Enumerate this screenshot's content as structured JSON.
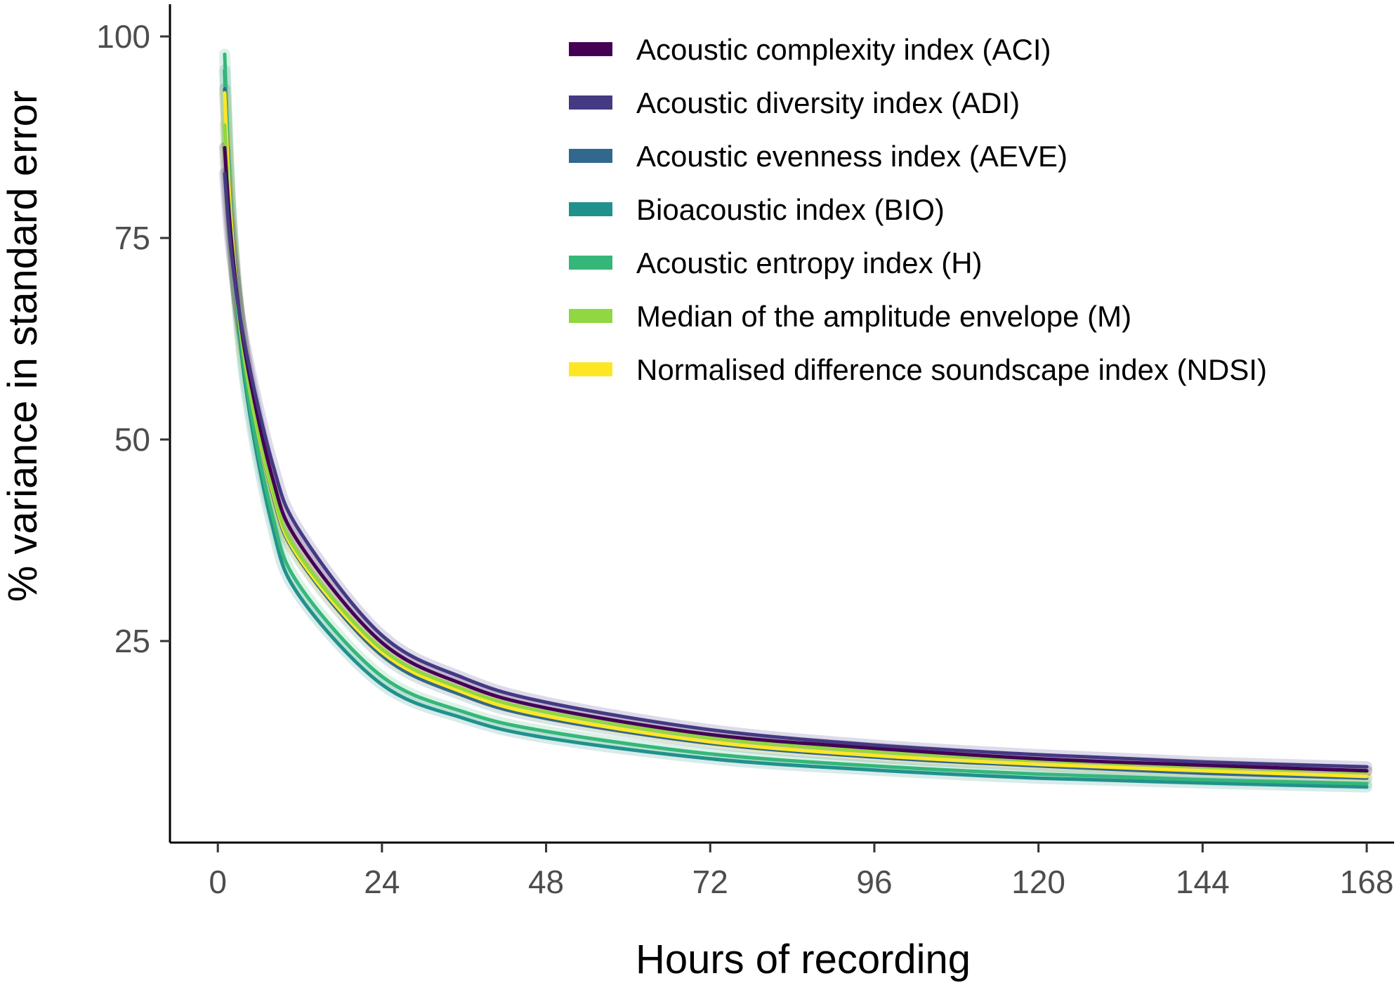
{
  "chart_data": {
    "type": "line",
    "xlabel": "Hours of recording",
    "ylabel": "% variance in standard error",
    "xlim": [
      -7,
      172
    ],
    "ylim": [
      0,
      104
    ],
    "x_ticks": [
      0,
      24,
      48,
      72,
      96,
      120,
      144,
      168
    ],
    "y_ticks": [
      25,
      50,
      75,
      100
    ],
    "grid": false,
    "legend_position": "top-right",
    "series": [
      {
        "name": "Acoustic complexity index (ACI)",
        "color": "#440154",
        "x": [
          1,
          2,
          4,
          8,
          12,
          24,
          36,
          48,
          72,
          96,
          120,
          144,
          168
        ],
        "y": [
          86.2,
          74.5,
          60.8,
          45.2,
          37.0,
          24.8,
          19.6,
          16.7,
          13.4,
          11.7,
          10.4,
          9.6,
          8.9
        ]
      },
      {
        "name": "Acoustic diversity index (ADI)",
        "color": "#443a83",
        "x": [
          1,
          2,
          4,
          8,
          12,
          24,
          36,
          48,
          72,
          96,
          120,
          144,
          168
        ],
        "y": [
          83.0,
          73.0,
          61.6,
          47.0,
          38.6,
          25.7,
          20.4,
          17.4,
          14.0,
          12.1,
          10.9,
          10.0,
          9.4
        ]
      },
      {
        "name": "Acoustic evenness index (AEVE)",
        "color": "#31688e",
        "x": [
          1,
          2,
          4,
          8,
          12,
          24,
          36,
          48,
          72,
          96,
          120,
          144,
          168
        ],
        "y": [
          93.5,
          77.0,
          60.0,
          43.2,
          35.0,
          23.2,
          18.2,
          15.4,
          12.3,
          10.6,
          9.5,
          8.6,
          8.0
        ]
      },
      {
        "name": "Bioacoustic index (BIO)",
        "color": "#21918c",
        "x": [
          1,
          2,
          4,
          8,
          12,
          24,
          36,
          48,
          72,
          96,
          120,
          144,
          168
        ],
        "y": [
          95.8,
          76.5,
          57.0,
          39.2,
          30.5,
          19.6,
          15.4,
          13.0,
          10.4,
          9.0,
          8.0,
          7.4,
          6.9
        ]
      },
      {
        "name": "Acoustic entropy index (H)",
        "color": "#35b779",
        "x": [
          1,
          2,
          4,
          8,
          12,
          24,
          36,
          48,
          72,
          96,
          120,
          144,
          168
        ],
        "y": [
          97.8,
          77.5,
          58.0,
          40.5,
          31.8,
          20.6,
          16.2,
          13.8,
          11.0,
          9.5,
          8.5,
          7.8,
          7.3
        ]
      },
      {
        "name": "Median of the amplitude envelope (M)",
        "color": "#90d743",
        "x": [
          1,
          2,
          4,
          8,
          12,
          24,
          36,
          48,
          72,
          96,
          120,
          144,
          168
        ],
        "y": [
          89.0,
          75.0,
          59.5,
          43.8,
          35.6,
          24.0,
          19.0,
          16.2,
          13.0,
          11.3,
          10.2,
          9.4,
          8.8
        ]
      },
      {
        "name": "Normalised difference soundscape index (NDSI)",
        "color": "#fde725",
        "x": [
          1,
          2,
          4,
          8,
          12,
          24,
          36,
          48,
          72,
          96,
          120,
          144,
          168
        ],
        "y": [
          93.0,
          76.5,
          59.5,
          43.5,
          35.2,
          23.6,
          18.6,
          15.7,
          12.5,
          10.8,
          9.7,
          8.9,
          8.2
        ]
      }
    ]
  }
}
